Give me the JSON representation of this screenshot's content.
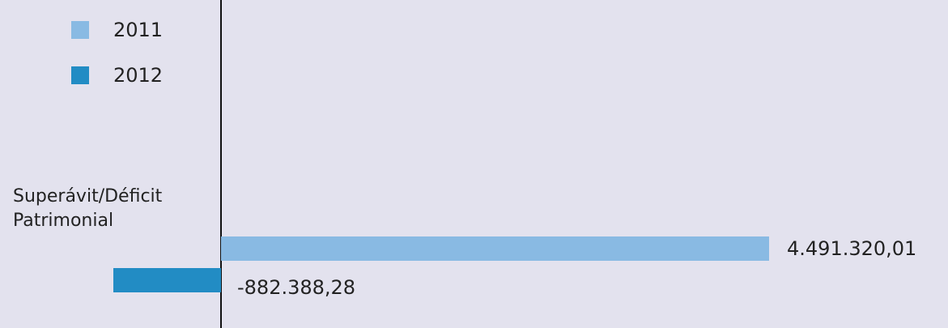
{
  "chart_data": {
    "type": "bar",
    "orientation": "horizontal",
    "categories": [
      "Superávit/Déficit Patrimonial"
    ],
    "series": [
      {
        "name": "2011",
        "color": "#89bae3",
        "values": [
          4491320.01
        ],
        "value_labels": [
          "4.491.320,01"
        ]
      },
      {
        "name": "2012",
        "color": "#228cc4",
        "values": [
          -882388.28
        ],
        "value_labels": [
          "-882.388,28"
        ]
      }
    ]
  }
}
